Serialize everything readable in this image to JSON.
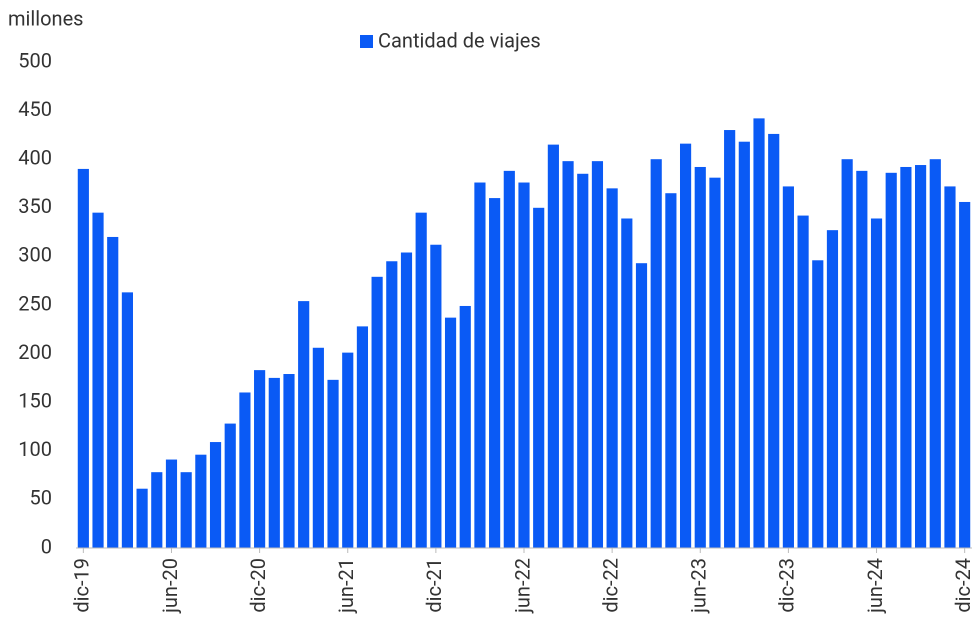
{
  "chart_data": {
    "type": "bar",
    "y_axis_label": "millones",
    "series": [
      {
        "name": "Cantidad de viajes",
        "color": "#0a5af5",
        "values": [
          390,
          345,
          320,
          263,
          61,
          78,
          91,
          78,
          96,
          109,
          128,
          160,
          183,
          175,
          179,
          254,
          206,
          173,
          201,
          228,
          279,
          295,
          304,
          345,
          312,
          237,
          249,
          376,
          360,
          388,
          376,
          350,
          415,
          398,
          385,
          398,
          370,
          339,
          293,
          400,
          365,
          416,
          392,
          381,
          430,
          418,
          442,
          426,
          372,
          342,
          296,
          327,
          400,
          388,
          339,
          386,
          392,
          394,
          400,
          372,
          356
        ]
      }
    ],
    "categories": [
      "dic-19",
      null,
      null,
      null,
      null,
      null,
      "jun-20",
      null,
      null,
      null,
      null,
      null,
      "dic-20",
      null,
      null,
      null,
      null,
      null,
      "jun-21",
      null,
      null,
      null,
      null,
      null,
      "dic-21",
      null,
      null,
      null,
      null,
      null,
      "jun-22",
      null,
      null,
      null,
      null,
      null,
      "dic-22",
      null,
      null,
      null,
      null,
      null,
      "jun-23",
      null,
      null,
      null,
      null,
      null,
      "dic-23",
      null,
      null,
      null,
      null,
      null,
      "jun-24",
      null,
      null,
      null,
      null,
      null,
      "dic-24"
    ],
    "ylim": [
      0,
      500
    ],
    "yticks": [
      0,
      50,
      100,
      150,
      200,
      250,
      300,
      350,
      400,
      450,
      500
    ],
    "legend": "top"
  }
}
